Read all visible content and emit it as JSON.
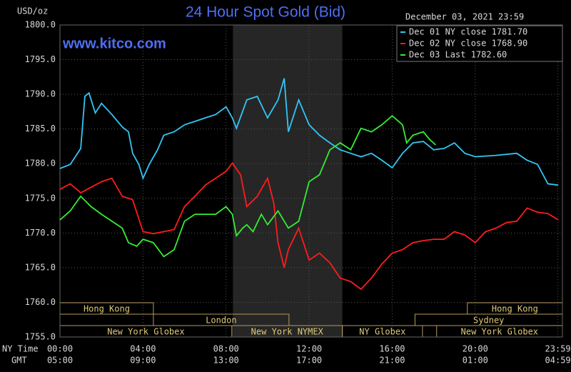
{
  "chart_data": {
    "type": "line",
    "title": "24 Hour Spot Gold (Bid)",
    "subtitle": "December 03, 2021 23:59",
    "source": "www.kitco.com",
    "ylabel": "USD/oz",
    "xlabel": "NY Time",
    "x2label": "GMT",
    "ylim": [
      1755,
      1800
    ],
    "yticks": [
      {
        "value": 1755,
        "label": "1755.0"
      },
      {
        "value": 1760,
        "label": "1760.0"
      },
      {
        "value": 1765,
        "label": "1765.0"
      },
      {
        "value": 1770,
        "label": "1770.0"
      },
      {
        "value": 1775,
        "label": "1775.0"
      },
      {
        "value": 1780,
        "label": "1780.0"
      },
      {
        "value": 1785,
        "label": "1785.0"
      },
      {
        "value": 1790,
        "label": "1790.0"
      },
      {
        "value": 1795,
        "label": "1795.0"
      },
      {
        "value": 1800,
        "label": "1800.0"
      }
    ],
    "xlim": [
      0,
      24.2
    ],
    "xticks": [
      {
        "value": 0,
        "label": "00:00"
      },
      {
        "value": 4,
        "label": "04:00"
      },
      {
        "value": 8,
        "label": "08:00"
      },
      {
        "value": 12,
        "label": "12:00"
      },
      {
        "value": 16,
        "label": "16:00"
      },
      {
        "value": 20,
        "label": "20:00"
      },
      {
        "value": 23.98,
        "label": "23:59"
      }
    ],
    "x2ticks": [
      {
        "value": 0,
        "label": "05:00"
      },
      {
        "value": 4,
        "label": "09:00"
      },
      {
        "value": 8,
        "label": "13:00"
      },
      {
        "value": 12,
        "label": "17:00"
      },
      {
        "value": 16,
        "label": "21:00"
      },
      {
        "value": 20,
        "label": "01:00"
      },
      {
        "value": 23.98,
        "label": "04:59"
      }
    ],
    "grid": true,
    "shaded_range": [
      8.33,
      13.6
    ],
    "sessions": [
      {
        "label": "Hong Kong",
        "row": 0,
        "start": 0,
        "end": 4.5
      },
      {
        "label": "Hong Kong",
        "row": 0,
        "start": 19.62,
        "end": 24.2
      },
      {
        "label": "London",
        "row": 1,
        "start": 4.5,
        "end": 11.03
      },
      {
        "label": "Sydney",
        "row": 1,
        "start": 17.1,
        "end": 24.2
      },
      {
        "label": "New York Globex",
        "row": 2,
        "start": 0,
        "end": 8.28
      },
      {
        "label": "New York NYMEX",
        "row": 2,
        "start": 8.28,
        "end": 13.6
      },
      {
        "label": "NY Globex",
        "row": 2,
        "start": 13.6,
        "end": 17.46
      },
      {
        "label": "New York Globex",
        "row": 2,
        "start": 18.14,
        "end": 24.2
      }
    ],
    "legend_position": "upper right",
    "series": [
      {
        "name": "Dec 01 NY close 1781.70",
        "color": "#33c6f6",
        "x": [
          0,
          0.5,
          1,
          1.2,
          1.4,
          1.7,
          2,
          2.5,
          3,
          3.3,
          3.5,
          3.8,
          4,
          4.3,
          4.7,
          5,
          5.5,
          6,
          6.5,
          7,
          7.5,
          8,
          8.3,
          8.5,
          9,
          9.5,
          10,
          10.5,
          10.8,
          11,
          11.5,
          12,
          12.5,
          13,
          13.5,
          14,
          14.5,
          15,
          15.5,
          16,
          16.5,
          17,
          17.5,
          18,
          18.5,
          19,
          19.5,
          20,
          21,
          22,
          22.5,
          23,
          23.5,
          24
        ],
        "values": [
          1779.3,
          1779.9,
          1782.2,
          1789.7,
          1790.2,
          1787.3,
          1788.7,
          1787.1,
          1785.3,
          1784.6,
          1781.5,
          1779.9,
          1777.9,
          1779.9,
          1782,
          1784.1,
          1784.6,
          1785.6,
          1786.1,
          1786.6,
          1787.1,
          1788.2,
          1786.6,
          1785.1,
          1789.2,
          1789.7,
          1786.6,
          1789.2,
          1792.3,
          1784.6,
          1789.2,
          1785.6,
          1784.1,
          1783,
          1782,
          1781.5,
          1781,
          1781.5,
          1780.5,
          1779.4,
          1781.5,
          1783,
          1783.2,
          1782,
          1782.2,
          1783,
          1781.5,
          1781,
          1781.2,
          1781.5,
          1780.5,
          1779.9,
          1777.1,
          1776.9
        ]
      },
      {
        "name": "Dec 02 NY close 1768.90",
        "color": "#ff1c1c",
        "x": [
          0,
          0.5,
          1,
          1.5,
          2,
          2.5,
          3,
          3.5,
          4,
          4.5,
          5,
          5.5,
          6,
          6.5,
          7,
          7.5,
          8,
          8.3,
          8.7,
          9,
          9.5,
          10,
          10.3,
          10.5,
          10.8,
          11,
          11.5,
          12,
          12.5,
          13,
          13.5,
          14,
          14.5,
          15,
          15.5,
          16,
          16.5,
          17,
          17.5,
          18,
          18.5,
          19,
          19.5,
          20,
          20.5,
          21,
          21.5,
          22,
          22.5,
          23,
          23.5,
          24
        ],
        "values": [
          1776.3,
          1777.1,
          1775.8,
          1776.6,
          1777.4,
          1777.9,
          1775.3,
          1774.8,
          1770.2,
          1769.9,
          1770.2,
          1770.5,
          1773.8,
          1775.3,
          1776.9,
          1777.9,
          1778.9,
          1780.1,
          1778.4,
          1773.8,
          1775.3,
          1777.9,
          1774.3,
          1768.6,
          1765,
          1767.6,
          1770.7,
          1766.1,
          1767.1,
          1765.7,
          1763.5,
          1763,
          1761.9,
          1763.5,
          1765.5,
          1767.1,
          1767.6,
          1768.6,
          1768.9,
          1769.1,
          1769.1,
          1770.2,
          1769.7,
          1768.6,
          1770.2,
          1770.7,
          1771.5,
          1771.7,
          1773.6,
          1773,
          1772.8,
          1771.9
        ]
      },
      {
        "name": "Dec 03 Last 1782.60",
        "color": "#33ee33",
        "x": [
          0,
          0.5,
          1,
          1.5,
          2,
          2.5,
          3,
          3.3,
          3.7,
          4,
          4.5,
          5,
          5.5,
          6,
          6.5,
          7,
          7.5,
          8,
          8.3,
          8.5,
          8.8,
          9,
          9.3,
          9.7,
          10,
          10.5,
          10.8,
          11,
          11.5,
          12,
          12.5,
          13,
          13.5,
          14,
          14.5,
          15,
          15.5,
          16,
          16.5,
          16.7,
          17,
          17.5,
          17.8,
          18.1
        ],
        "values": [
          1771.9,
          1773.2,
          1775.3,
          1773.8,
          1772.7,
          1771.7,
          1770.7,
          1768.6,
          1768.1,
          1769.1,
          1768.6,
          1766.6,
          1767.6,
          1771.7,
          1772.7,
          1772.7,
          1772.7,
          1773.8,
          1772.7,
          1769.6,
          1770.7,
          1771.2,
          1770.2,
          1772.7,
          1771.2,
          1773.2,
          1771.7,
          1770.7,
          1771.7,
          1777.4,
          1778.4,
          1782,
          1783,
          1782,
          1785.1,
          1784.6,
          1785.6,
          1786.9,
          1785.6,
          1783,
          1784.1,
          1784.6,
          1783.5,
          1782.7
        ]
      }
    ]
  }
}
